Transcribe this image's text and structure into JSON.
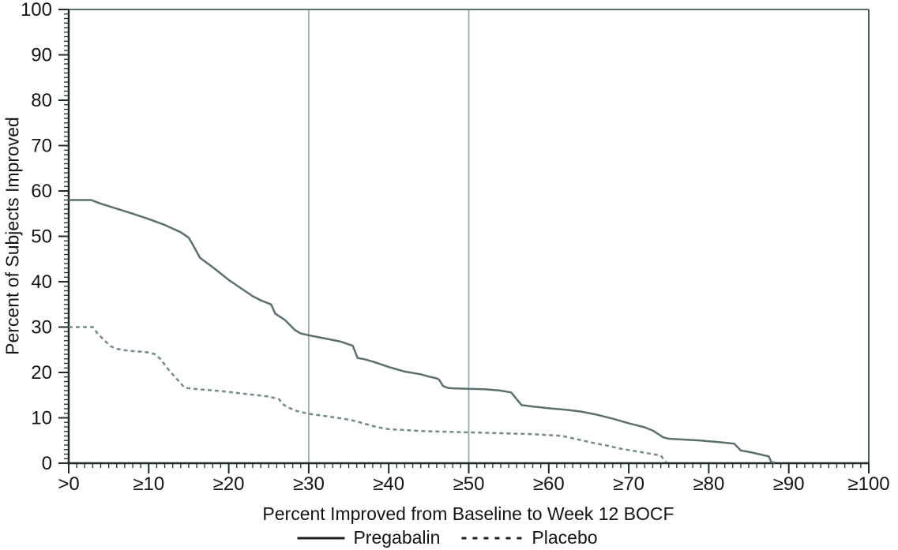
{
  "figure": {
    "background": "#ffffff"
  },
  "chart_data": {
    "type": "line",
    "title": "",
    "xlabel": "Percent Improved from Baseline to Week 12 BOCF",
    "ylabel": "Percent of Subjects Improved",
    "xlim": [
      0,
      100
    ],
    "ylim": [
      0,
      100
    ],
    "grid": false,
    "legend_position": "bottom",
    "x_tick_values": [
      0,
      10,
      20,
      30,
      40,
      50,
      60,
      70,
      80,
      90,
      100
    ],
    "x_tick_labels": [
      ">0",
      "≥10",
      "≥20",
      "≥30",
      "≥40",
      "≥50",
      "≥60",
      "≥70",
      "≥80",
      "≥90",
      "≥100"
    ],
    "y_tick_values": [
      0,
      10,
      20,
      30,
      40,
      50,
      60,
      70,
      80,
      90,
      100
    ],
    "y_tick_labels": [
      "0",
      "10",
      "20",
      "30",
      "40",
      "50",
      "60",
      "70",
      "80",
      "90",
      "100"
    ],
    "minor_tick_step_x": 1,
    "minor_tick_step_y": 1,
    "reference_lines_x": [
      30,
      50
    ],
    "colors": {
      "axis": "#1f2a2b",
      "box_top": "#5d6e70",
      "box_right": "#4a5a5c",
      "reference_line": "#92a3a3",
      "text": "#141414",
      "legend_sample": "#1f1f1f",
      "pregabalin_line": "#5d6f70",
      "placebo_line": "#778989"
    },
    "series": [
      {
        "name": "Pregabalin",
        "style": "solid",
        "color": "#5d6f70",
        "points": [
          [
            0,
            58
          ],
          [
            2.8,
            58
          ],
          [
            4,
            57.2
          ],
          [
            6,
            56.1
          ],
          [
            8,
            55
          ],
          [
            10,
            53.8
          ],
          [
            12,
            52.5
          ],
          [
            14,
            50.9
          ],
          [
            15,
            49.7
          ],
          [
            15.4,
            48.5
          ],
          [
            16.4,
            45.3
          ],
          [
            17,
            44.5
          ],
          [
            18,
            43.2
          ],
          [
            19,
            41.8
          ],
          [
            20,
            40.4
          ],
          [
            21,
            39.2
          ],
          [
            22,
            38
          ],
          [
            23,
            36.8
          ],
          [
            24,
            35.9
          ],
          [
            25.3,
            35
          ],
          [
            25.8,
            33
          ],
          [
            27,
            31.6
          ],
          [
            28.3,
            29.3
          ],
          [
            29,
            28.6
          ],
          [
            30,
            28.2
          ],
          [
            32,
            27.5
          ],
          [
            34,
            26.8
          ],
          [
            35,
            26.2
          ],
          [
            35.5,
            25.9
          ],
          [
            36.1,
            23.2
          ],
          [
            37,
            22.9
          ],
          [
            38,
            22.4
          ],
          [
            40,
            21.2
          ],
          [
            42,
            20.2
          ],
          [
            44,
            19.6
          ],
          [
            45,
            19.1
          ],
          [
            46,
            18.7
          ],
          [
            46.3,
            18.4
          ],
          [
            46.8,
            17
          ],
          [
            47.4,
            16.6
          ],
          [
            48,
            16.5
          ],
          [
            50,
            16.4
          ],
          [
            52,
            16.3
          ],
          [
            54,
            16
          ],
          [
            55.3,
            15.6
          ],
          [
            56.6,
            12.8
          ],
          [
            58,
            12.5
          ],
          [
            60,
            12.1
          ],
          [
            62,
            11.8
          ],
          [
            64,
            11.4
          ],
          [
            66,
            10.7
          ],
          [
            68,
            9.8
          ],
          [
            70,
            8.8
          ],
          [
            72,
            7.9
          ],
          [
            73,
            7.2
          ],
          [
            74.3,
            5.7
          ],
          [
            75,
            5.4
          ],
          [
            77,
            5.2
          ],
          [
            79,
            5
          ],
          [
            81,
            4.7
          ],
          [
            83.2,
            4.3
          ],
          [
            84,
            2.8
          ],
          [
            85,
            2.5
          ],
          [
            86,
            2.1
          ],
          [
            87.5,
            1.5
          ],
          [
            87.8,
            0.3
          ],
          [
            88.3,
            0.1
          ]
        ]
      },
      {
        "name": "Placebo",
        "style": "dashed",
        "color": "#778989",
        "points": [
          [
            0,
            30
          ],
          [
            3,
            30
          ],
          [
            3.6,
            28.6
          ],
          [
            4.5,
            27
          ],
          [
            5.2,
            25.8
          ],
          [
            6,
            25.2
          ],
          [
            7,
            24.9
          ],
          [
            8,
            24.7
          ],
          [
            9,
            24.6
          ],
          [
            10,
            24.4
          ],
          [
            10.8,
            24
          ],
          [
            11.5,
            22.9
          ],
          [
            12.3,
            21
          ],
          [
            13,
            19.6
          ],
          [
            13.8,
            18
          ],
          [
            14.3,
            17
          ],
          [
            14.7,
            16.6
          ],
          [
            15.5,
            16.4
          ],
          [
            17,
            16.2
          ],
          [
            19,
            15.9
          ],
          [
            21,
            15.5
          ],
          [
            23,
            15.1
          ],
          [
            25,
            14.7
          ],
          [
            26.3,
            14.1
          ],
          [
            26.7,
            13.1
          ],
          [
            27.4,
            12.3
          ],
          [
            28.5,
            11.5
          ],
          [
            30,
            10.9
          ],
          [
            32,
            10.4
          ],
          [
            34,
            9.9
          ],
          [
            35,
            9.6
          ],
          [
            36,
            9.2
          ],
          [
            37,
            8.7
          ],
          [
            38,
            8.2
          ],
          [
            39,
            7.8
          ],
          [
            40,
            7.5
          ],
          [
            42,
            7.3
          ],
          [
            44,
            7.1
          ],
          [
            46,
            7
          ],
          [
            48,
            6.9
          ],
          [
            50,
            6.8
          ],
          [
            52,
            6.7
          ],
          [
            54,
            6.6
          ],
          [
            56,
            6.5
          ],
          [
            58,
            6.4
          ],
          [
            60,
            6.2
          ],
          [
            61,
            6.1
          ],
          [
            62,
            5.9
          ],
          [
            63,
            5.5
          ],
          [
            64,
            5.1
          ],
          [
            65,
            4.7
          ],
          [
            66,
            4.3
          ],
          [
            67,
            4
          ],
          [
            68,
            3.6
          ],
          [
            69,
            3.2
          ],
          [
            70,
            2.9
          ],
          [
            71,
            2.6
          ],
          [
            72,
            2.3
          ],
          [
            73,
            2
          ],
          [
            74,
            1.7
          ],
          [
            74.3,
            1
          ],
          [
            74.7,
            0.3
          ]
        ]
      }
    ],
    "legend": [
      {
        "label": "Pregabalin",
        "style": "solid"
      },
      {
        "label": "Placebo",
        "style": "dashed"
      }
    ]
  }
}
